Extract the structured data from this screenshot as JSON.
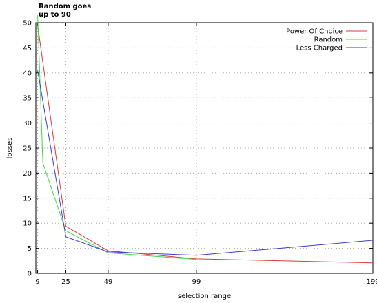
{
  "chart_data": {
    "type": "line",
    "title": "",
    "xlabel": "selection range",
    "ylabel": "losses",
    "xlim": [
      8,
      199
    ],
    "ylim": [
      0,
      50
    ],
    "x_ticks": [
      9,
      25,
      49,
      99,
      199
    ],
    "x_tick_labels": [
      "9",
      "25",
      "49",
      "99",
      "199"
    ],
    "y_ticks": [
      0,
      5,
      10,
      15,
      20,
      25,
      30,
      35,
      40,
      45,
      50
    ],
    "y_tick_labels": [
      "0",
      "5",
      "10",
      "15",
      "20",
      "25",
      "30",
      "35",
      "40",
      "45",
      "50"
    ],
    "grid": true,
    "legend_position": "top-right",
    "annotation": [
      "Random goes",
      "up to 90"
    ],
    "series": [
      {
        "name": "Power Of Choice",
        "color": "#d93838",
        "points": [
          [
            9,
            49.5
          ],
          [
            25,
            9.4
          ],
          [
            49,
            4.5
          ],
          [
            99,
            2.9
          ],
          [
            199,
            2.1
          ]
        ]
      },
      {
        "name": "Random",
        "color": "#3ed93e",
        "points": [
          [
            9,
            51.5
          ],
          [
            12,
            22
          ],
          [
            25,
            8.5
          ],
          [
            49,
            4.1
          ],
          [
            99,
            2.8
          ]
        ]
      },
      {
        "name": "Less Charged",
        "color": "#3a3ad6",
        "points": [
          [
            9,
            40.5
          ],
          [
            25,
            7.3
          ],
          [
            49,
            4.3
          ],
          [
            99,
            3.6
          ],
          [
            199,
            6.6
          ]
        ]
      }
    ]
  }
}
